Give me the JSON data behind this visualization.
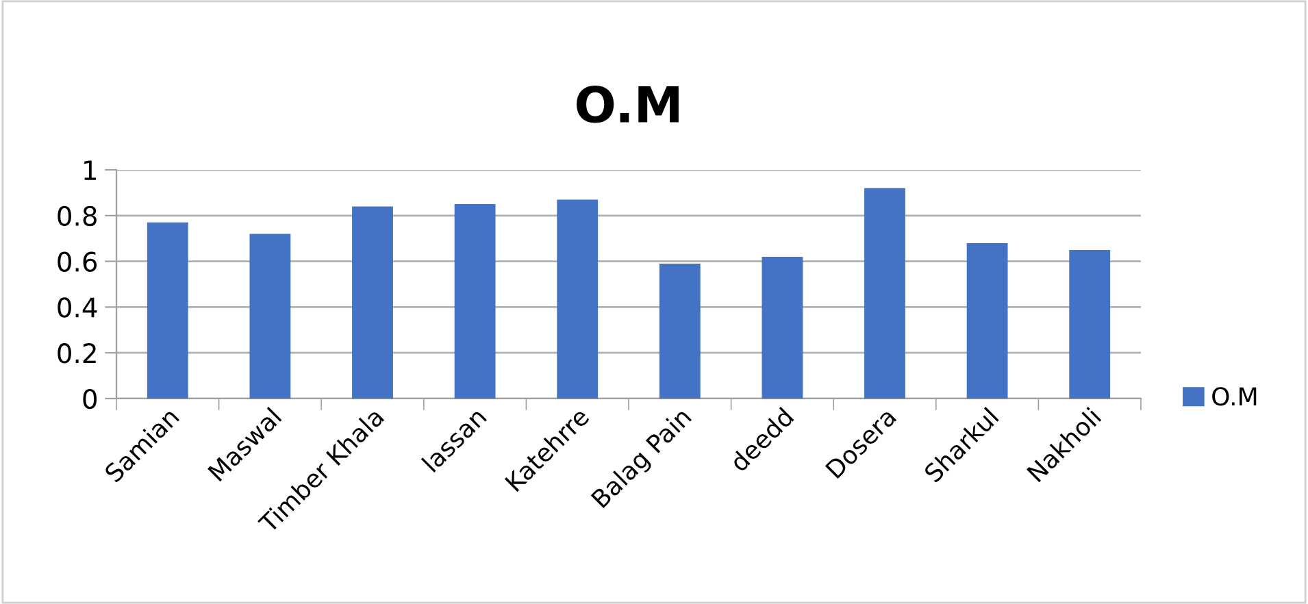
{
  "chart_data": {
    "type": "bar",
    "title": "O.M",
    "categories": [
      "Samian",
      "Maswal",
      "Timber Khala",
      "lassan",
      "Katehrre",
      "Balag Pain",
      "deedd",
      "Dosera",
      "Sharkul",
      "Nakholi"
    ],
    "series": [
      {
        "name": "O.M",
        "color": "#4472c4",
        "values": [
          0.77,
          0.72,
          0.84,
          0.85,
          0.87,
          0.59,
          0.62,
          0.92,
          0.68,
          0.65
        ]
      }
    ],
    "ylim": [
      0,
      1
    ],
    "yticks": [
      0,
      {
        "value": 0.2,
        "label": "0.2"
      },
      {
        "value": 0.4,
        "label": "0.4"
      },
      {
        "value": 0.6,
        "label": "0.6"
      },
      {
        "value": 0.8,
        "label": "0.8"
      },
      1
    ],
    "grid": "y",
    "legend": "right"
  }
}
